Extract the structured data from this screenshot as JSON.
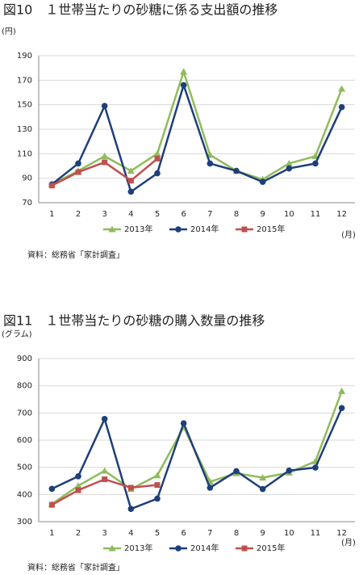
{
  "chart_data": [
    {
      "type": "line",
      "title": "図10　１世帯当たりの砂糖に係る支出額の推移",
      "y_unit": "(円)",
      "x_unit": "(月)",
      "source": "資料：総務省「家計調査」",
      "categories": [
        "1",
        "2",
        "3",
        "4",
        "5",
        "6",
        "7",
        "8",
        "9",
        "10",
        "11",
        "12"
      ],
      "ylim": [
        70,
        190
      ],
      "yticks": [
        70,
        90,
        110,
        130,
        150,
        170,
        190
      ],
      "grid": true,
      "series": [
        {
          "name": "2013年",
          "color": "#8fbc5a",
          "marker": "triangle",
          "values": [
            85,
            96,
            108,
            96,
            110,
            177,
            109,
            96,
            89,
            102,
            108,
            163
          ]
        },
        {
          "name": "2014年",
          "color": "#1f3f7a",
          "marker": "circle",
          "values": [
            85,
            102,
            149,
            79,
            94,
            166,
            102,
            96,
            87,
            98,
            102,
            148
          ]
        },
        {
          "name": "2015年",
          "color": "#c0504d",
          "marker": "square",
          "values": [
            84,
            95,
            103,
            88,
            106,
            null,
            null,
            null,
            null,
            null,
            null,
            null
          ]
        }
      ]
    },
    {
      "type": "line",
      "title": "図11　１世帯当たりの砂糖の購入数量の推移",
      "y_unit": "(グラム)",
      "x_unit": "(月)",
      "source": "資料：総務省「家計調査」",
      "categories": [
        "1",
        "2",
        "3",
        "4",
        "5",
        "6",
        "7",
        "8",
        "9",
        "10",
        "11",
        "12"
      ],
      "ylim": [
        300,
        900
      ],
      "yticks": [
        300,
        400,
        500,
        600,
        700,
        800,
        900
      ],
      "grid": true,
      "series": [
        {
          "name": "2013年",
          "color": "#8fbc5a",
          "marker": "triangle",
          "values": [
            365,
            432,
            487,
            420,
            470,
            648,
            447,
            478,
            462,
            480,
            522,
            780
          ]
        },
        {
          "name": "2014年",
          "color": "#1f3f7a",
          "marker": "circle",
          "values": [
            421,
            467,
            678,
            347,
            385,
            662,
            425,
            486,
            420,
            488,
            499,
            718
          ]
        },
        {
          "name": "2015年",
          "color": "#c0504d",
          "marker": "square",
          "values": [
            362,
            416,
            456,
            425,
            435,
            null,
            null,
            null,
            null,
            null,
            null,
            null
          ]
        }
      ]
    }
  ]
}
